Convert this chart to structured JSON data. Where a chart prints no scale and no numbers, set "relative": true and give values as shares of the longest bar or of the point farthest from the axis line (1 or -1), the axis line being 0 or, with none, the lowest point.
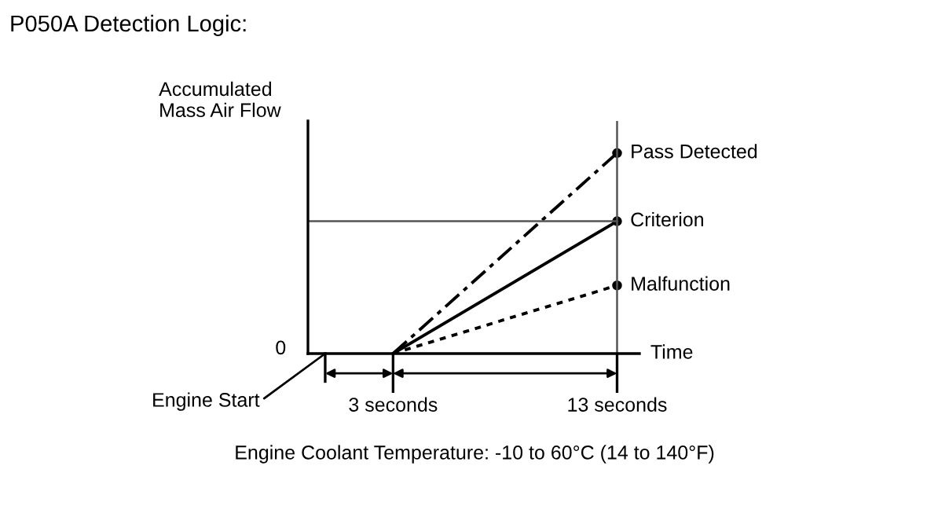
{
  "chart_data": {
    "type": "line",
    "title": "P050A Detection Logic:",
    "xlabel": "Time",
    "ylabel": "Accumulated\nMass Air Flow",
    "relative": true,
    "xlim": [
      -0.8,
      14
    ],
    "xticks": [
      {
        "value": 3,
        "label": "3 seconds"
      },
      {
        "value": 13,
        "label": "13 seconds"
      }
    ],
    "x": [
      3,
      13
    ],
    "series": [
      {
        "name": "Pass Detected",
        "color": "#000000",
        "values": [
          0,
          1
        ],
        "line_style": "dashdot"
      },
      {
        "name": "Criterion",
        "color": "#000000",
        "values": [
          0,
          0.66
        ],
        "line_style": "solid"
      },
      {
        "name": "Malfunction",
        "color": "#000000",
        "values": [
          0,
          0.34
        ],
        "line_style": "dotted"
      }
    ],
    "marker": "circle",
    "ref_lines": [
      {
        "axis": "y",
        "value": 0.66,
        "color": "#555555"
      },
      {
        "axis": "x",
        "value": 13,
        "color": "#555555"
      }
    ],
    "annotations": [
      "0",
      "Engine Start",
      "Engine Coolant Temperature: -10 to 60°C (14 to 140°F)"
    ],
    "grid": false
  }
}
